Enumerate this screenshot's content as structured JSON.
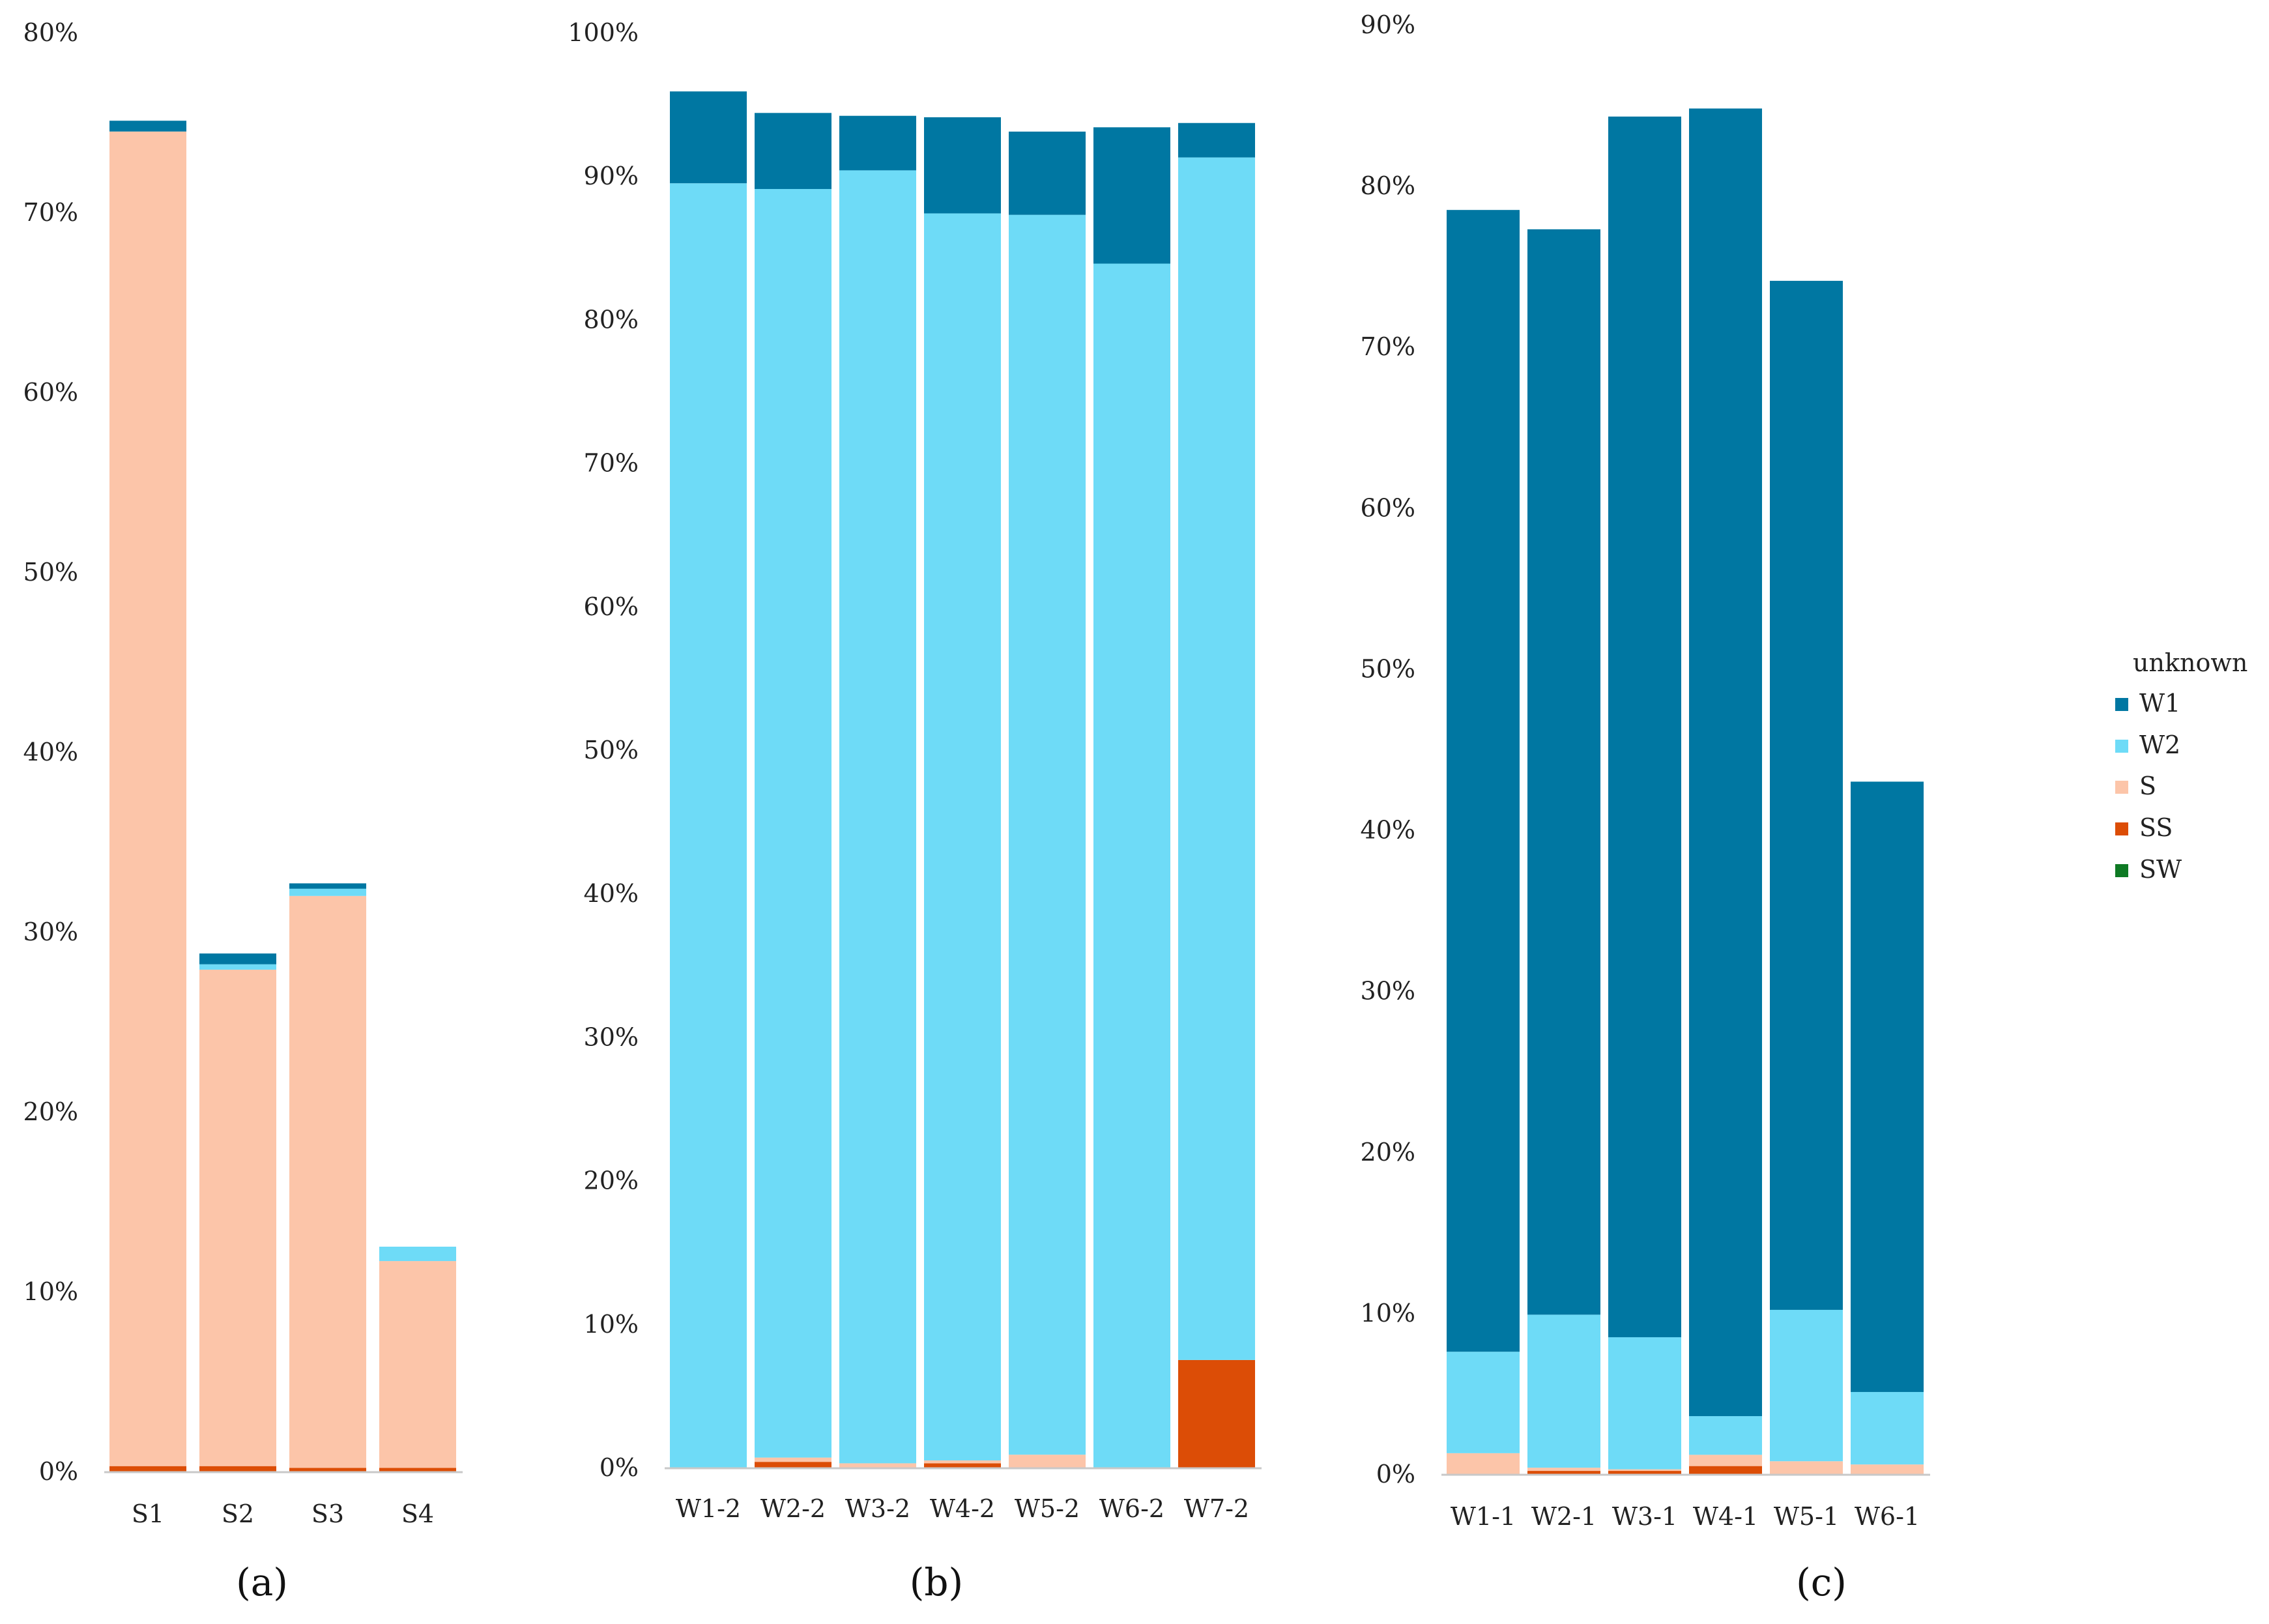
{
  "colors": {
    "W1": "#0077a2",
    "W2": "#6edbf7",
    "S": "#fcc5a9",
    "SS": "#dc4d06",
    "SW": "#0e7a24",
    "axis": "#c8c8c8"
  },
  "legend": {
    "title": "unknown",
    "items": [
      "W1",
      "W2",
      "S",
      "SS",
      "SW"
    ]
  },
  "chart_data": [
    {
      "type": "bar",
      "stacked": true,
      "panel_label": "(a)",
      "ylim": [
        0,
        80
      ],
      "yticks": [
        "0%",
        "10%",
        "20%",
        "30%",
        "40%",
        "50%",
        "60%",
        "70%",
        "80%"
      ],
      "categories": [
        "S1",
        "S2",
        "S3",
        "S4"
      ],
      "series": [
        {
          "name": "SS",
          "values": [
            0.3,
            0.3,
            0.2,
            0.2
          ]
        },
        {
          "name": "S",
          "values": [
            74.2,
            27.6,
            31.8,
            11.5
          ]
        },
        {
          "name": "W2",
          "values": [
            0.0,
            0.3,
            0.4,
            0.8
          ]
        },
        {
          "name": "W1",
          "values": [
            0.6,
            0.6,
            0.3,
            0.0
          ]
        },
        {
          "name": "SW",
          "values": [
            0,
            0,
            0,
            0
          ]
        }
      ]
    },
    {
      "type": "bar",
      "stacked": true,
      "panel_label": "(b)",
      "ylim": [
        0,
        100
      ],
      "yticks": [
        "0%",
        "10%",
        "20%",
        "30%",
        "40%",
        "50%",
        "60%",
        "70%",
        "80%",
        "90%",
        "100%"
      ],
      "categories": [
        "W1-2",
        "W2-2",
        "W3-2",
        "W4-2",
        "W5-2",
        "W6-2",
        "W7-2"
      ],
      "series": [
        {
          "name": "SS",
          "values": [
            0.0,
            0.4,
            0.0,
            0.3,
            0.0,
            0.0,
            7.5
          ]
        },
        {
          "name": "S",
          "values": [
            0.0,
            0.3,
            0.3,
            0.2,
            0.9,
            0.0,
            0.0
          ]
        },
        {
          "name": "W2",
          "values": [
            89.5,
            88.4,
            90.1,
            86.9,
            86.4,
            83.9,
            83.8
          ]
        },
        {
          "name": "W1",
          "values": [
            6.4,
            5.3,
            3.8,
            6.7,
            5.8,
            9.5,
            2.4
          ]
        },
        {
          "name": "SW",
          "values": [
            0,
            0,
            0,
            0,
            0,
            0,
            0
          ]
        }
      ]
    },
    {
      "type": "bar",
      "stacked": true,
      "panel_label": "(c)",
      "ylim": [
        0,
        90
      ],
      "yticks": [
        "0%",
        "10%",
        "20%",
        "30%",
        "40%",
        "50%",
        "60%",
        "70%",
        "80%",
        "90%"
      ],
      "categories": [
        "W1-1",
        "W2-1",
        "W3-1",
        "W4-1",
        "W5-1",
        "W6-1"
      ],
      "series": [
        {
          "name": "SS",
          "values": [
            0.0,
            0.2,
            0.2,
            0.5,
            0.0,
            0.0
          ]
        },
        {
          "name": "S",
          "values": [
            1.3,
            0.2,
            0.1,
            0.7,
            0.8,
            0.6
          ]
        },
        {
          "name": "W2",
          "values": [
            6.3,
            9.5,
            8.2,
            2.4,
            9.4,
            4.5
          ]
        },
        {
          "name": "W1",
          "values": [
            70.9,
            67.4,
            75.8,
            81.2,
            63.9,
            37.9
          ]
        },
        {
          "name": "SW",
          "values": [
            0,
            0,
            0,
            0,
            0,
            0
          ]
        }
      ]
    }
  ]
}
